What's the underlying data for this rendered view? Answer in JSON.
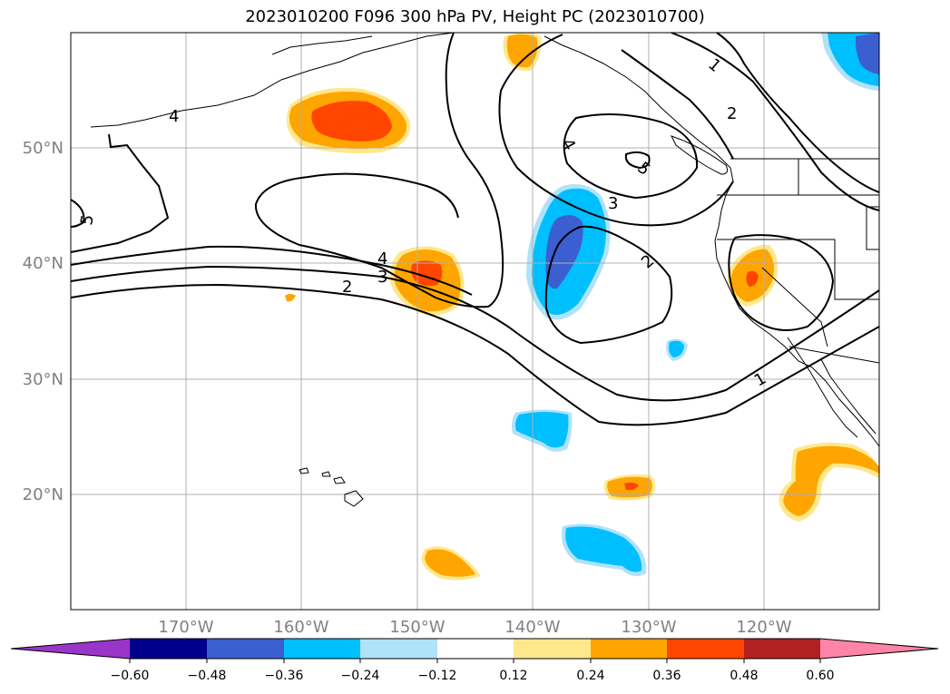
{
  "title": "2023010200 F096 300 hPa PV, Height PC (2023010700)",
  "map": {
    "lat_labels": [
      "50°N",
      "40°N",
      "30°N",
      "20°N"
    ],
    "lon_labels": [
      "170°W",
      "160°W",
      "150°W",
      "140°W",
      "130°W",
      "120°W"
    ],
    "contour_labels": [
      "4",
      "5",
      "4",
      "3",
      "2",
      "1",
      "2",
      "4",
      "5",
      "3",
      "2",
      "1"
    ]
  },
  "colorbar": {
    "ticks": [
      "−0.60",
      "−0.48",
      "−0.36",
      "−0.24",
      "−0.12",
      "0.12",
      "0.24",
      "0.36",
      "0.48",
      "0.60"
    ],
    "colors": [
      "#9a35c9",
      "#00008b",
      "#3b5fd0",
      "#00bfff",
      "#b0e2f8",
      "#ffffff",
      "#ffe88c",
      "#ffa500",
      "#ff4500",
      "#b22222",
      "#ff85a8"
    ]
  }
}
